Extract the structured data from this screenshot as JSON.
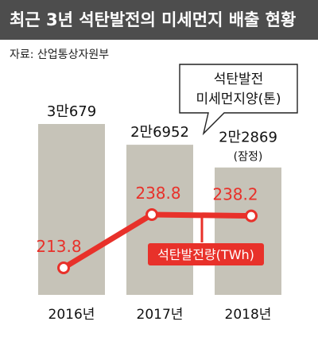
{
  "header": {
    "title": "최근 3년 석탄발전의 미세먼지 배출 현황"
  },
  "source": "자료: 산업통상자원부",
  "colors": {
    "header_bg": "#4d4d4d",
    "bar": "#c6c3b8",
    "line": "#e8312a",
    "marker_fill": "#ffffff",
    "line_label": "#e8312a",
    "legend_bg": "#e8312a",
    "legend_text": "#ffffff",
    "axis_text": "#111111",
    "bar_label_text": "#111111"
  },
  "chart_data": {
    "type": "bar+line",
    "categories": [
      "2016년",
      "2017년",
      "2018년"
    ],
    "bar_series": {
      "name": "석탄발전 미세먼지양(톤)",
      "name_lines": [
        "석탄발전",
        "미세먼지양(톤)"
      ],
      "values": [
        30679,
        26952,
        22869
      ],
      "value_labels": [
        "3만679",
        "2만6952",
        "2만2869"
      ],
      "notes": [
        "",
        "",
        "(잠정)"
      ]
    },
    "line_series": {
      "name": "석탄발전량(TWh)",
      "values": [
        213.8,
        238.8,
        238.2
      ],
      "value_labels": [
        "213.8",
        "238.8",
        "238.2"
      ]
    }
  }
}
